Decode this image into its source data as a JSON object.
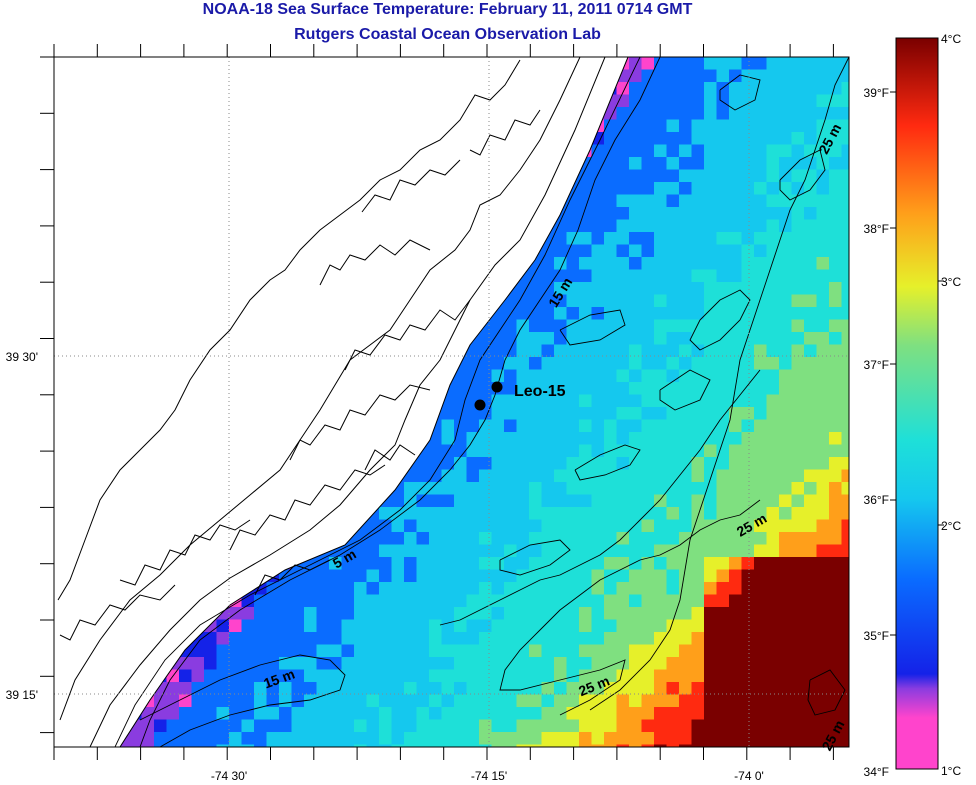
{
  "header": {
    "title": "NOAA-18 Sea Surface Temperature:  February 11, 2011 0714 GMT",
    "subtitle": "Rutgers Coastal Ocean Observation Lab"
  },
  "map": {
    "lat_labels": [
      "39 30'",
      "39 15'"
    ],
    "lon_labels": [
      "-74 30'",
      "-74 15'",
      "-74 0'"
    ],
    "station": {
      "name": "Leo-15"
    },
    "depth_labels": [
      "5 m",
      "15 m",
      "15 m",
      "25 m",
      "25 m",
      "25 m",
      "25 m"
    ],
    "colors": {
      "land": "#ffffff",
      "coast": "#000000",
      "grid": "#8a8a8a",
      "title": "#1a1aa8"
    }
  },
  "colorbar": {
    "celsius_labels": [
      "4°C",
      "3°C",
      "2°C",
      "1°C"
    ],
    "fahrenheit_labels": [
      "39°F",
      "38°F",
      "37°F",
      "36°F",
      "35°F",
      "34°F"
    ],
    "range_c": [
      1,
      4
    ],
    "colors": [
      "#ff44cc",
      "#8a3ce0",
      "#1422e8",
      "#0a6cff",
      "#15c8ee",
      "#1ee0d8",
      "#7fe080",
      "#e6f02a",
      "#ff9f1a",
      "#ff2a10",
      "#7a0000"
    ]
  }
}
